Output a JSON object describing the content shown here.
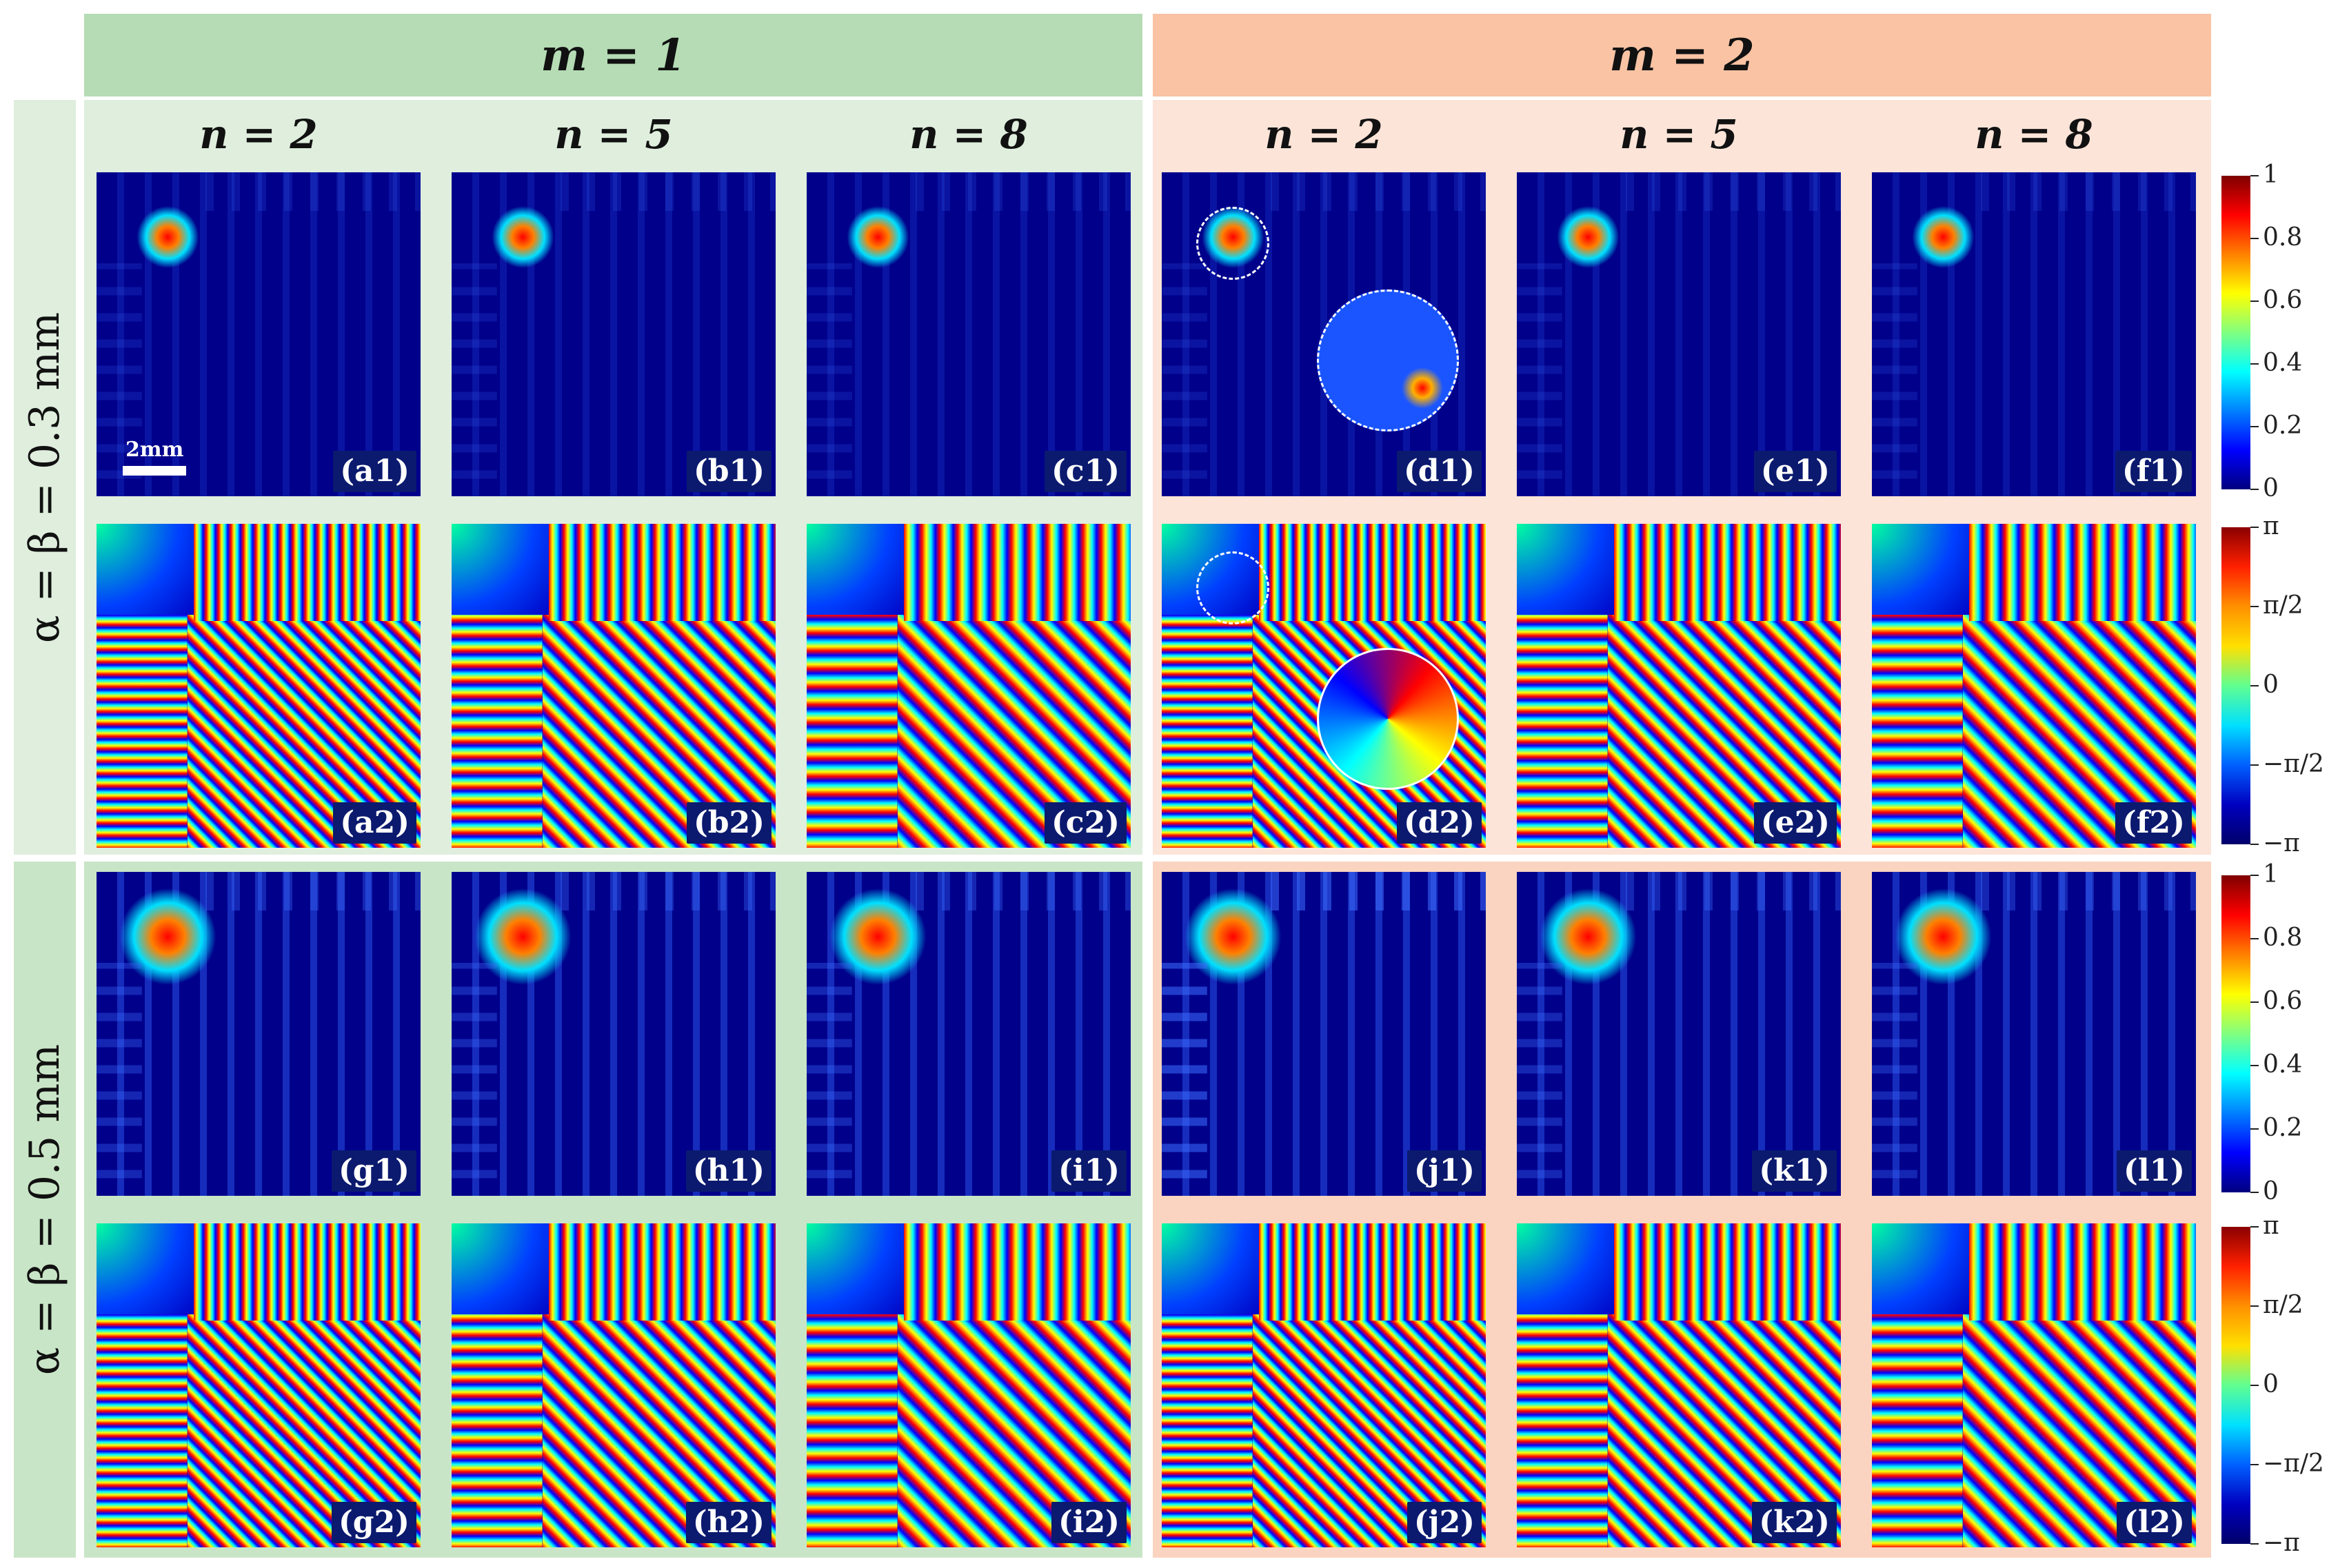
{
  "headers": {
    "m1": "m = 1",
    "m2": "m = 2"
  },
  "columns": [
    "n = 2",
    "n = 5",
    "n = 8",
    "n = 2",
    "n = 5",
    "n = 8"
  ],
  "rows": [
    "α = β = 0.3 mm",
    "α = β = 0.5 mm"
  ],
  "panels": [
    [
      "(a1)",
      "(b1)",
      "(c1)",
      "(d1)",
      "(e1)",
      "(f1)"
    ],
    [
      "(a2)",
      "(b2)",
      "(c2)",
      "(d2)",
      "(e2)",
      "(f2)"
    ],
    [
      "(g1)",
      "(h1)",
      "(i1)",
      "(j1)",
      "(k1)",
      "(l1)"
    ],
    [
      "(g2)",
      "(h2)",
      "(i2)",
      "(j2)",
      "(k2)",
      "(l2)"
    ]
  ],
  "scalebar": "2mm",
  "colorbar_intensity": [
    "1",
    "0.8",
    "0.6",
    "0.4",
    "0.2",
    "0"
  ],
  "colorbar_phase": [
    "π",
    "π/2",
    "0",
    "−π/2",
    "−π"
  ],
  "colors": {
    "m1_header": "#b5dcb4",
    "m2_header": "#f9c3a4",
    "m1_bg_top": "#dfeedd",
    "m1_bg_bottom": "#c9e5c7",
    "m2_bg_top": "#fce4d8",
    "m2_bg_bottom": "#fad4c0",
    "field_bg": "#00008b"
  }
}
